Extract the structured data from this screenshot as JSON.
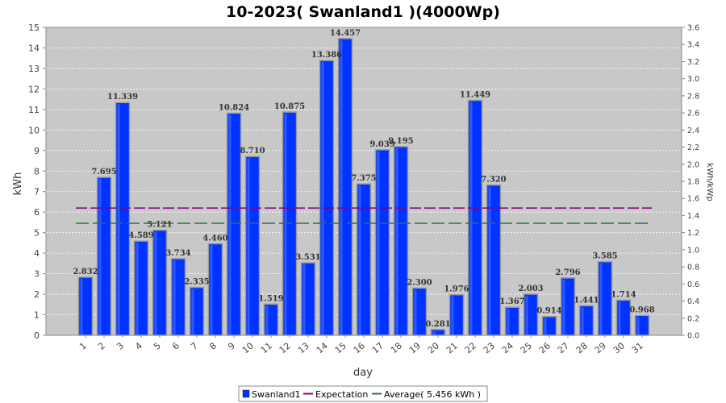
{
  "chart_data": {
    "type": "bar",
    "title": "10-2023( Swanland1 )(4000Wp)",
    "xlabel": "day",
    "ylabel": "kWh",
    "y2label": "kWh/kWp",
    "ylim": [
      0,
      15
    ],
    "y2lim": [
      0,
      3.6
    ],
    "categories": [
      "1",
      "2",
      "3",
      "4",
      "5",
      "6",
      "7",
      "8",
      "9",
      "10",
      "11",
      "12",
      "13",
      "14",
      "15",
      "16",
      "17",
      "18",
      "19",
      "20",
      "21",
      "22",
      "23",
      "24",
      "25",
      "26",
      "27",
      "28",
      "29",
      "30",
      "31"
    ],
    "series": [
      {
        "name": "Swanland1",
        "color": "#0033ff",
        "values": [
          2.832,
          7.695,
          11.339,
          4.589,
          5.121,
          3.734,
          2.335,
          4.46,
          10.824,
          8.71,
          1.519,
          10.875,
          3.531,
          13.386,
          14.457,
          7.375,
          9.039,
          9.195,
          2.3,
          0.281,
          1.976,
          11.449,
          7.32,
          1.367,
          2.003,
          0.914,
          2.796,
          1.441,
          3.585,
          1.714,
          0.968
        ],
        "labels": [
          "2.832",
          "7.695",
          "11.339",
          "4.589",
          "5.121",
          "3.734",
          "2.335",
          "4.460",
          "10.824",
          "8.710",
          "1.519",
          "10.875",
          "3.531",
          "13.386",
          "14.457",
          "7.375",
          "9.039",
          "9.195",
          "2.300",
          "0.281",
          "1.976",
          "11.449",
          "7.320",
          "1.367",
          "2.003",
          "0.914",
          "2.796",
          "1.441",
          "3.585",
          "1.714",
          "0.968"
        ]
      }
    ],
    "lines": [
      {
        "name": "Expectation",
        "value": 6.2,
        "color": "#800080"
      },
      {
        "name": "Average( 5.456 kWh )",
        "value": 5.456,
        "color": "#2f6f4f"
      }
    ],
    "grid": true,
    "legend_position": "bottom-center",
    "plot_background": "#c8c8c8"
  }
}
